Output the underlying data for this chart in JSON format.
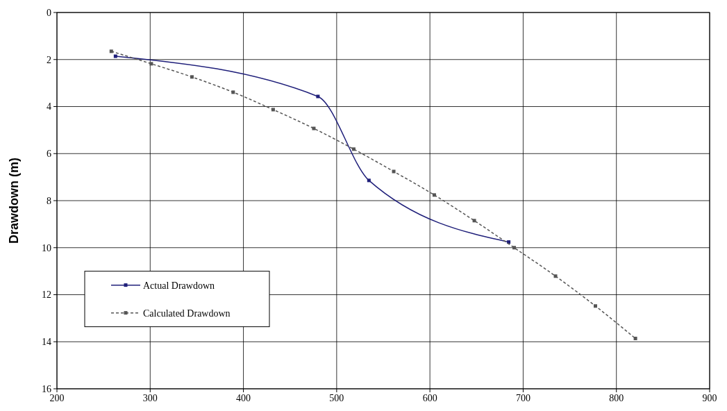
{
  "chart_data": {
    "type": "line",
    "ylabel": "Drawdown (m)",
    "xlim": [
      200,
      900
    ],
    "xticks": [
      200,
      300,
      400,
      500,
      600,
      700,
      800,
      900
    ],
    "ylim": [
      16,
      0
    ],
    "yticks": [
      0,
      2,
      4,
      6,
      8,
      10,
      12,
      14,
      16
    ],
    "grid": true,
    "legend": "bottom left",
    "marker": "square",
    "series": [
      {
        "name": "Actual Drawdown",
        "color": "#1f1f7a",
        "line_style": "solid",
        "x": [
          262.8,
          479.9,
          534.6,
          684.5
        ],
        "values": [
          1.86,
          3.57,
          7.14,
          9.76
        ]
      },
      {
        "name": "Calculated Drawdown",
        "color": "#555555",
        "line_style": "dashed",
        "x": [
          258.3,
          301.2,
          344.8,
          389,
          431.9,
          475.5,
          518.3,
          561.2,
          604.7,
          647.6,
          690.4,
          734.7,
          777.5,
          820.4
        ],
        "values": [
          1.65,
          2.18,
          2.74,
          3.39,
          4.13,
          4.93,
          5.81,
          6.76,
          7.76,
          8.85,
          10.0,
          11.21,
          12.48,
          13.86
        ]
      }
    ]
  }
}
